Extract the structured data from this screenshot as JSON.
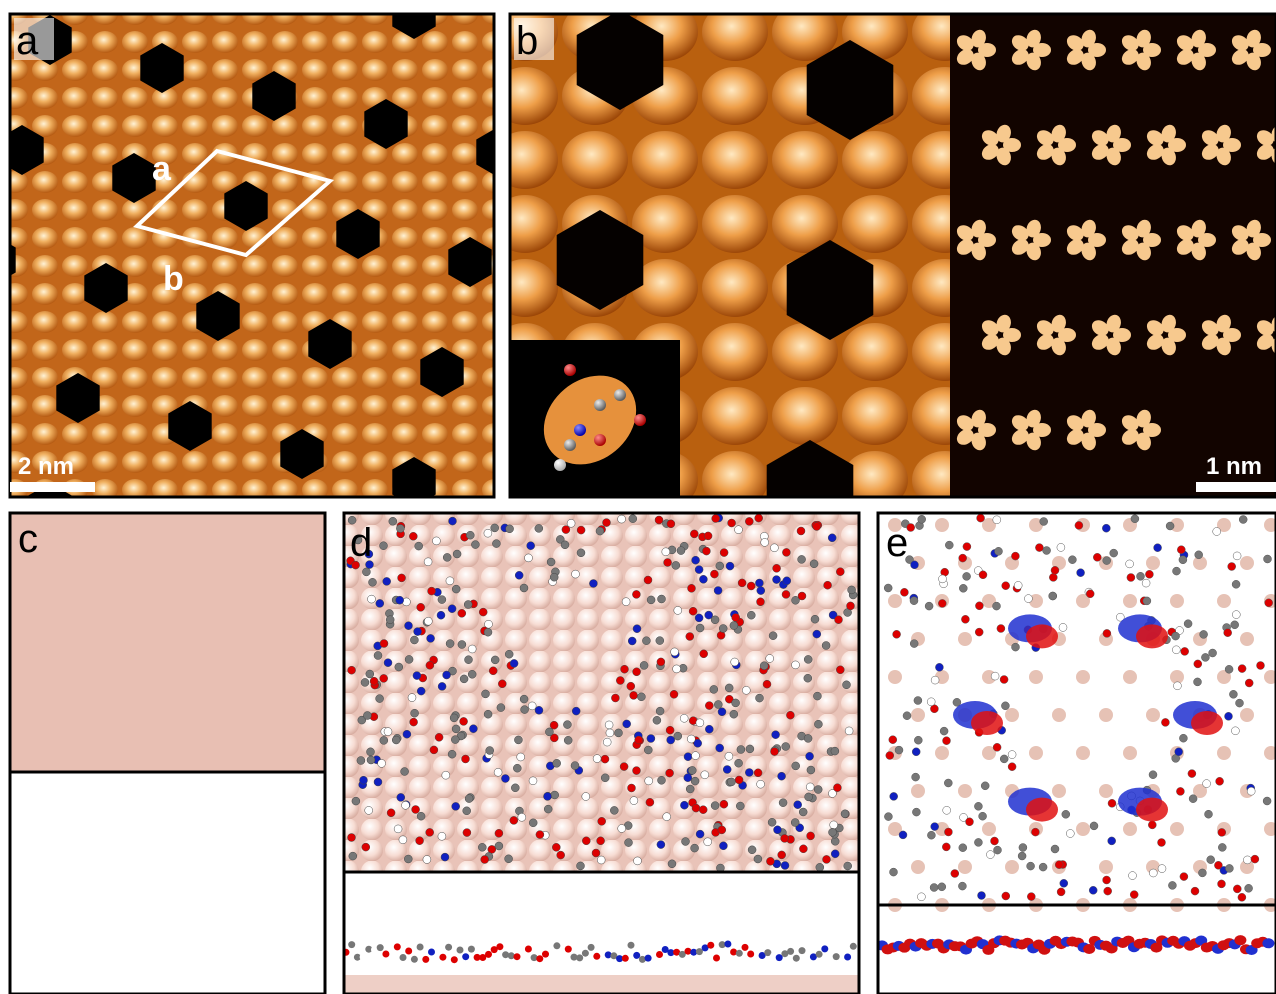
{
  "panels": [
    {
      "label": "a",
      "lattice_labels": [
        "a",
        "b"
      ],
      "scale_bar": "2 nm"
    },
    {
      "label": "b",
      "scale_bar": "1 nm"
    },
    {
      "label": "c"
    },
    {
      "label": "d"
    },
    {
      "label": "e"
    }
  ]
}
